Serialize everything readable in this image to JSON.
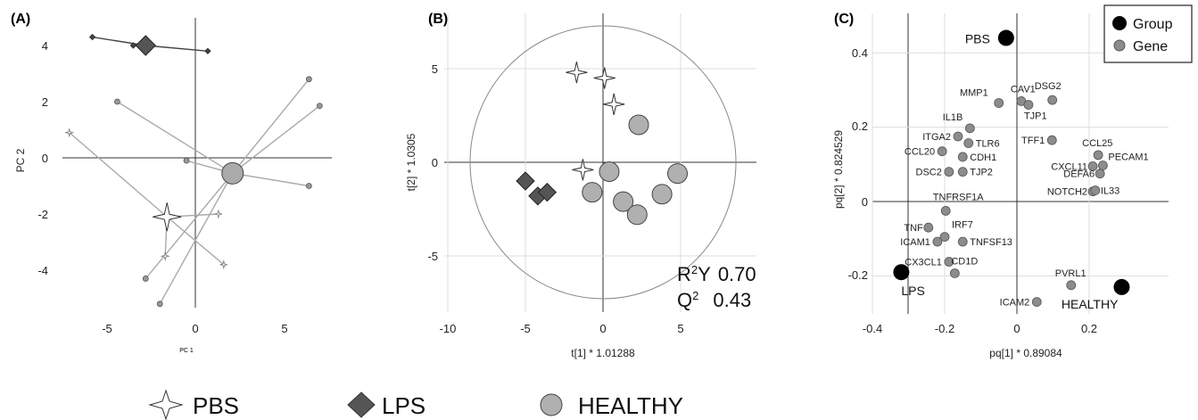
{
  "chart_data": [
    {
      "panel": "(A)",
      "type": "scatter",
      "xlabel": "PC 1",
      "ylabel": "PC 2",
      "xticks": [
        "-5",
        "0",
        "5"
      ],
      "yticks": [
        "4",
        "2",
        "0",
        "-2",
        "-4"
      ],
      "xlim": [
        -7.5,
        7.5
      ],
      "ylim": [
        -5.3,
        4.5
      ],
      "series": [
        {
          "name": "PBS",
          "centroid": [
            -1.6,
            -2.1
          ],
          "points": [
            [
              -7.1,
              0.9
            ],
            [
              1.3,
              -2.0
            ],
            [
              1.6,
              -3.8
            ],
            [
              -1.7,
              -3.5
            ]
          ]
        },
        {
          "name": "LPS",
          "centroid": [
            -2.8,
            4.0
          ],
          "points": [
            [
              -5.8,
              4.3
            ],
            [
              -3.5,
              4.0
            ],
            [
              0.7,
              3.8
            ]
          ]
        },
        {
          "name": "HEALTHY",
          "centroid": [
            2.1,
            -0.55
          ],
          "points": [
            [
              6.4,
              2.8
            ],
            [
              7.0,
              1.85
            ],
            [
              6.4,
              -1.0
            ],
            [
              -0.5,
              -0.1
            ],
            [
              -4.4,
              2.0
            ],
            [
              -2.8,
              -4.3
            ],
            [
              -2.0,
              -5.2
            ]
          ]
        }
      ]
    },
    {
      "panel": "(B)",
      "type": "scatter",
      "xlabel": "t[1] * 1.01288",
      "ylabel": "t[2] * 1.0305",
      "xticks": [
        "-10",
        "-5",
        "0",
        "5"
      ],
      "yticks": [
        "5",
        "0",
        "-5"
      ],
      "xlim": [
        -10,
        10
      ],
      "ylim": [
        -8,
        7.5
      ],
      "r2y_label": "R",
      "r2y_sup": "2",
      "r2y_tail": "Y",
      "r2y_value": "0.70",
      "q2_label": "Q",
      "q2_sup": "2",
      "q2_value": "0.43",
      "series": [
        {
          "name": "PBS",
          "points": [
            [
              -1.7,
              4.8
            ],
            [
              0.1,
              4.5
            ],
            [
              0.7,
              3.1
            ],
            [
              -1.3,
              -0.4
            ]
          ]
        },
        {
          "name": "LPS",
          "points": [
            [
              -5.0,
              -1.0
            ],
            [
              -4.2,
              -1.8
            ],
            [
              -3.6,
              -1.6
            ]
          ]
        },
        {
          "name": "HEALTHY",
          "points": [
            [
              2.3,
              2.0
            ],
            [
              0.4,
              -0.5
            ],
            [
              4.8,
              -0.6
            ],
            [
              -0.7,
              -1.6
            ],
            [
              3.8,
              -1.7
            ],
            [
              1.3,
              -2.1
            ],
            [
              2.2,
              -2.8
            ]
          ]
        }
      ]
    },
    {
      "panel": "(C)",
      "type": "scatter",
      "xlabel": "pq[1] * 0.89084",
      "ylabel": "pq[2] * 0.824529",
      "xticks": [
        "-0.4",
        "-0.2",
        "0",
        "0.2"
      ],
      "yticks": [
        "0.4",
        "0.2",
        "0",
        "-0.2"
      ],
      "xlim": [
        -0.4,
        0.3
      ],
      "ylim": [
        -0.3,
        0.48
      ],
      "legend": [
        {
          "label": "Group",
          "color": "#000000"
        },
        {
          "label": "Gene",
          "color": "#8c8c8c"
        }
      ],
      "groups": [
        {
          "label": "PBS",
          "x": -0.03,
          "y": 0.44
        },
        {
          "label": "LPS",
          "x": -0.32,
          "y": -0.19
        },
        {
          "label": "HEALTHY",
          "x": 0.29,
          "y": -0.23
        }
      ],
      "genes": [
        {
          "label": "MMP1",
          "x": -0.05,
          "y": 0.265
        },
        {
          "label": "CAV1",
          "x": 0.012,
          "y": 0.27
        },
        {
          "label": "DSG2",
          "x": 0.098,
          "y": 0.273
        },
        {
          "label": "TJP1",
          "x": 0.032,
          "y": 0.26
        },
        {
          "label": "IL1B",
          "x": -0.13,
          "y": 0.197
        },
        {
          "label": "ITGA2",
          "x": -0.163,
          "y": 0.175
        },
        {
          "label": "TFF1",
          "x": 0.097,
          "y": 0.165
        },
        {
          "label": "TLR6",
          "x": -0.134,
          "y": 0.157
        },
        {
          "label": "CCL20",
          "x": -0.207,
          "y": 0.135
        },
        {
          "label": "CDH1",
          "x": -0.15,
          "y": 0.12
        },
        {
          "label": "CCL25",
          "x": 0.225,
          "y": 0.125
        },
        {
          "label": "PECAM1",
          "x": 0.238,
          "y": 0.097
        },
        {
          "label": "CXCL11",
          "x": 0.21,
          "y": 0.095
        },
        {
          "label": "DEFA6",
          "x": 0.23,
          "y": 0.075
        },
        {
          "label": "DSC2",
          "x": -0.188,
          "y": 0.08
        },
        {
          "label": "TJP2",
          "x": -0.15,
          "y": 0.08
        },
        {
          "label": "NOTCH2",
          "x": 0.21,
          "y": 0.027
        },
        {
          "label": "IL33",
          "x": 0.217,
          "y": 0.03
        },
        {
          "label": "TNFRSF1A",
          "x": -0.197,
          "y": -0.025
        },
        {
          "label": "TNF",
          "x": -0.245,
          "y": -0.07
        },
        {
          "label": "IRF7",
          "x": -0.2,
          "y": -0.095
        },
        {
          "label": "ICAM1",
          "x": -0.22,
          "y": -0.108
        },
        {
          "label": "TNFSF13",
          "x": -0.15,
          "y": -0.108
        },
        {
          "label": "CX3CL1",
          "x": -0.188,
          "y": -0.162
        },
        {
          "label": "CD1D",
          "x": -0.172,
          "y": -0.193
        },
        {
          "label": "PVRL1",
          "x": 0.15,
          "y": -0.225
        },
        {
          "label": "ICAM2",
          "x": 0.055,
          "y": -0.27
        }
      ]
    }
  ],
  "legend": [
    {
      "label": "PBS",
      "marker": "star",
      "color": "#ffffff"
    },
    {
      "label": "LPS",
      "marker": "diamond",
      "color": "#555555"
    },
    {
      "label": "HEALTHY",
      "marker": "circle",
      "color": "#b0b0b0"
    }
  ]
}
